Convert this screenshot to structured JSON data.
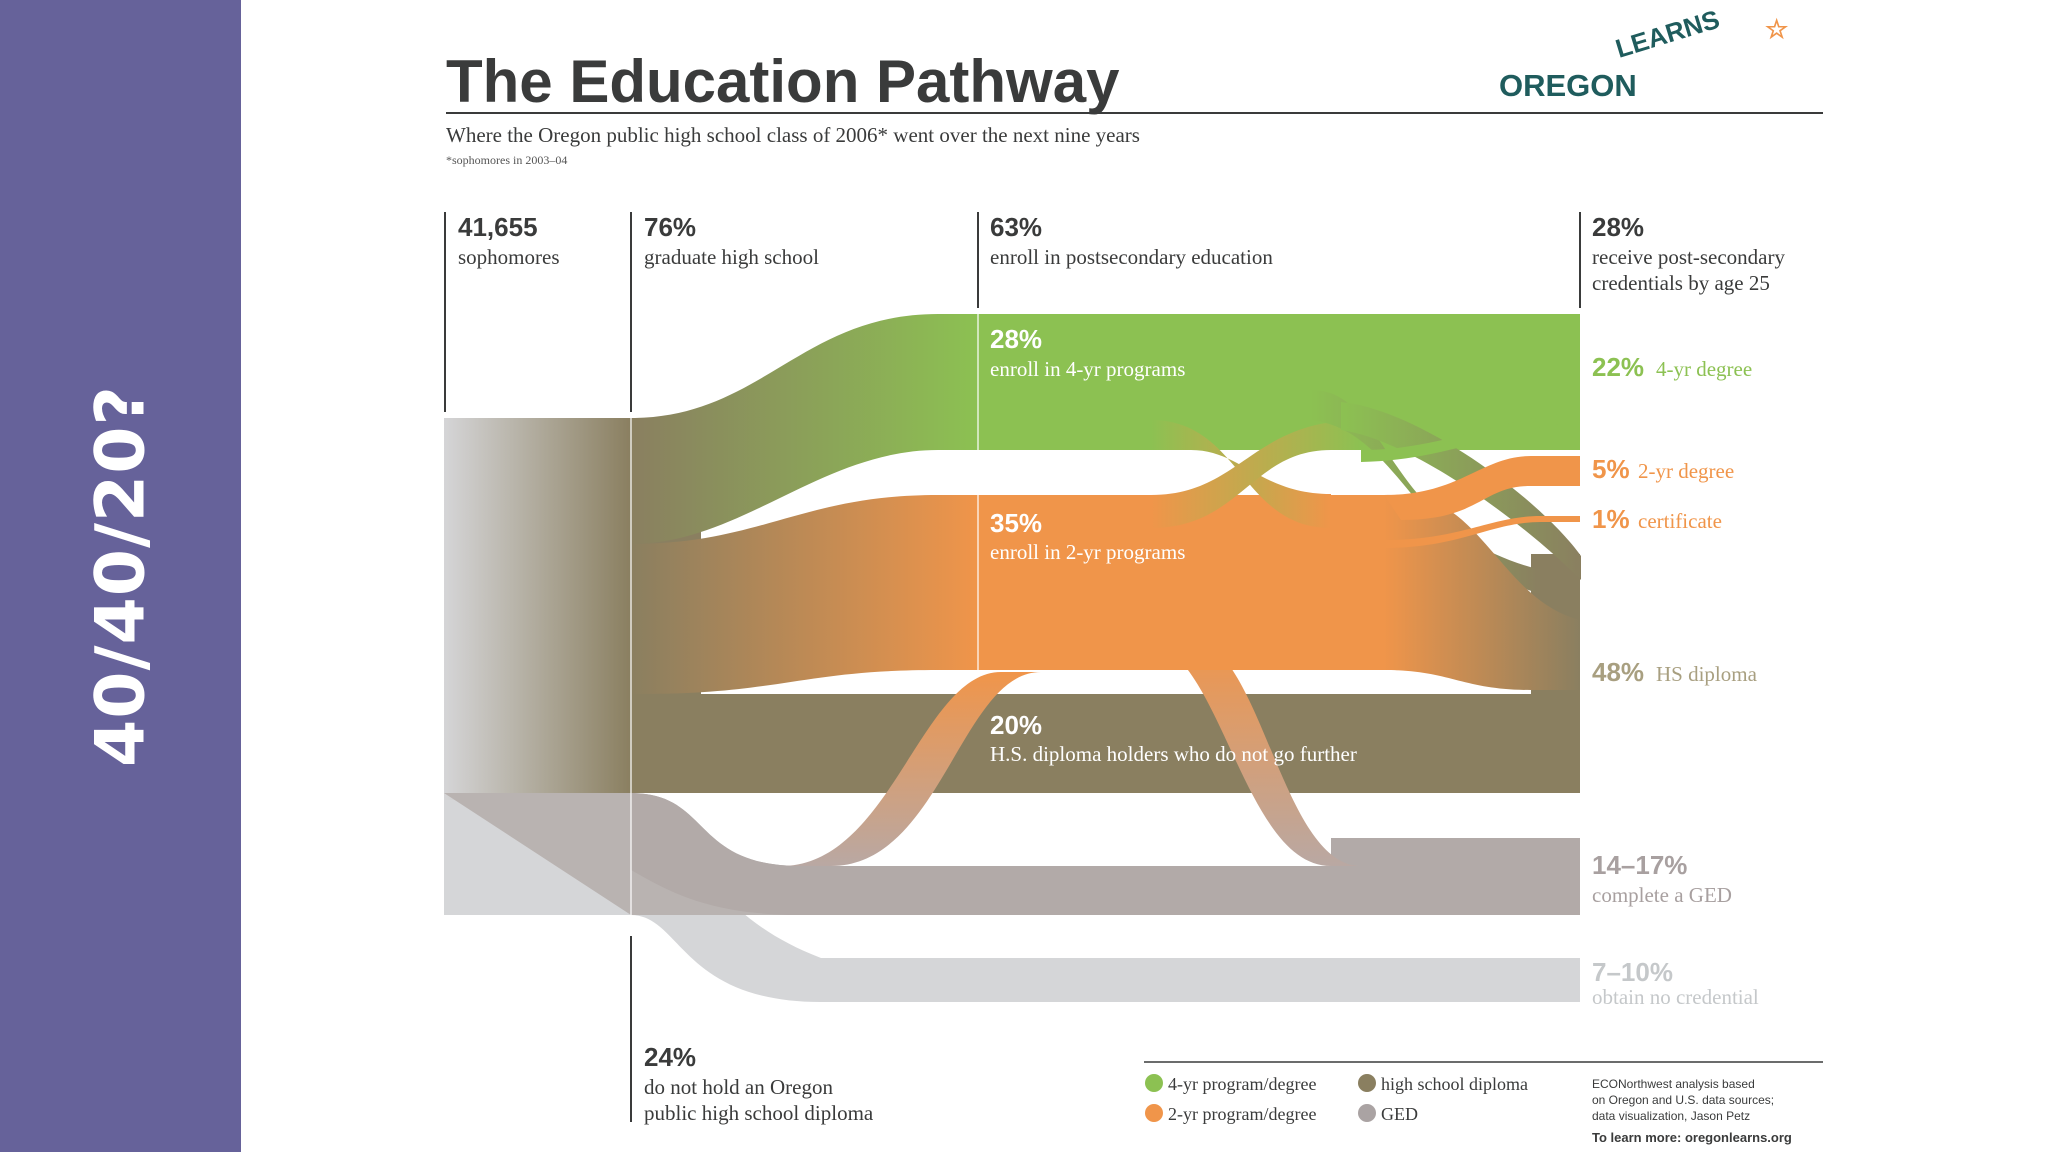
{
  "slide": {
    "side_label": "40/40/20?"
  },
  "infographic": {
    "title": "The Education Pathway",
    "subtitle": "Where the Oregon public high school class of 2006* went over the next nine years",
    "footnote": "*sophomores in 2003–04",
    "logo": {
      "word": "OREGON",
      "arc_word": "LEARNS",
      "star": "☆"
    },
    "columns": [
      {
        "value": "41,655",
        "label_lines": [
          "sophomores"
        ]
      },
      {
        "value": "76%",
        "label_lines": [
          "graduate high school"
        ]
      },
      {
        "value": "63%",
        "label_lines": [
          "enroll in postsecondary education"
        ]
      },
      {
        "value": "28%",
        "label_lines": [
          "receive post-secondary",
          "credentials by age 25"
        ]
      }
    ],
    "bottom_column": {
      "value": "24%",
      "label_lines": [
        "do not hold an Oregon",
        "public high school diploma"
      ]
    },
    "middle_labels": [
      {
        "value": "28%",
        "label": "enroll in 4-yr programs"
      },
      {
        "value": "35%",
        "label": "enroll in 2-yr programs"
      },
      {
        "value": "20%",
        "label": "H.S. diploma holders who do not go further"
      }
    ],
    "outcomes": [
      {
        "value": "22%",
        "label": "4-yr degree",
        "color": "#8cc152"
      },
      {
        "value": "5%",
        "label": "2-yr degree",
        "color": "#f0954a"
      },
      {
        "value": "1%",
        "label": "certificate",
        "color": "#f0954a"
      },
      {
        "value": "48%",
        "label": "HS diploma",
        "color": "#a89f80"
      },
      {
        "value": "14–17%",
        "label": "complete a GED",
        "color": "#a8a0a0"
      },
      {
        "value": "7–10%",
        "label": "obtain no credential",
        "color": "#c5c8ca"
      }
    ],
    "legend": [
      {
        "label": "4-yr program/degree",
        "color": "#8cc152"
      },
      {
        "label": "high school diploma",
        "color": "#8a7f60"
      },
      {
        "label": "2-yr program/degree",
        "color": "#f0954a"
      },
      {
        "label": "GED",
        "color": "#aaa3a3"
      }
    ],
    "credit_lines": [
      "ECONorthwest analysis based",
      "on Oregon and U.S. data sources;",
      "data visualization, Jason Petz"
    ],
    "learn_more": "To learn more: oregonlearns.org"
  }
}
